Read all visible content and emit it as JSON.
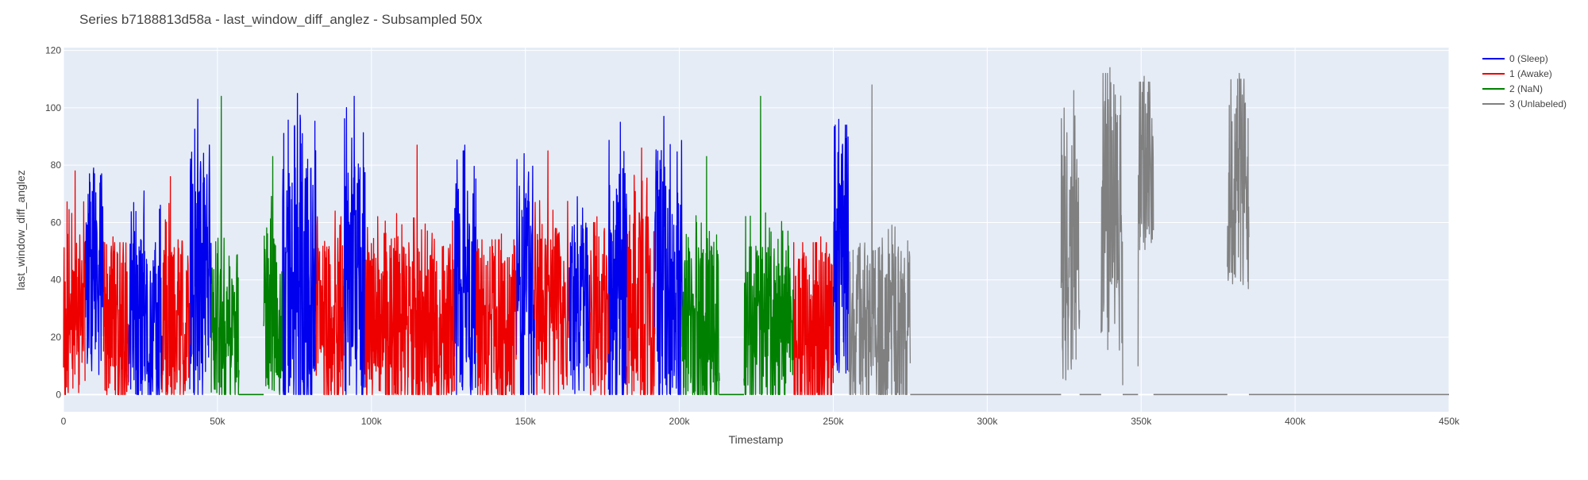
{
  "chart_data": {
    "type": "line",
    "title": "Series b7188813d58a - last_window_diff_anglez - Subsampled 50x",
    "xlabel": "Timestamp",
    "ylabel": "last_window_diff_anglez",
    "xlim": [
      0,
      450000
    ],
    "ylim": [
      -6,
      121
    ],
    "x_ticks": [
      0,
      50000,
      100000,
      150000,
      200000,
      250000,
      300000,
      350000,
      400000,
      450000
    ],
    "x_tick_labels": [
      "0",
      "50k",
      "100k",
      "150k",
      "200k",
      "250k",
      "300k",
      "350k",
      "400k",
      "450k"
    ],
    "y_ticks": [
      0,
      20,
      40,
      60,
      80,
      100,
      120
    ],
    "y_tick_labels": [
      "0",
      "20",
      "40",
      "60",
      "80",
      "100",
      "120"
    ],
    "grid": true,
    "legend": "top-right",
    "plot_bg": "#e5ecf6",
    "series": [
      {
        "name": "0 (Sleep)",
        "color": "#0000ee",
        "segments": [
          {
            "start": 7000,
            "end": 13000,
            "level": 40,
            "spread": 35,
            "max": 79
          },
          {
            "start": 21000,
            "end": 32000,
            "level": 25,
            "spread": 30,
            "max": 71
          },
          {
            "start": 41000,
            "end": 48000,
            "level": 38,
            "spread": 45,
            "max": 103
          },
          {
            "start": 71000,
            "end": 82000,
            "level": 35,
            "spread": 45,
            "max": 105
          },
          {
            "start": 91000,
            "end": 98000,
            "level": 38,
            "spread": 45,
            "max": 104
          },
          {
            "start": 127000,
            "end": 134000,
            "level": 35,
            "spread": 40,
            "max": 87
          },
          {
            "start": 147000,
            "end": 153000,
            "level": 35,
            "spread": 40,
            "max": 84
          },
          {
            "start": 164000,
            "end": 171000,
            "level": 30,
            "spread": 30,
            "max": 69
          },
          {
            "start": 177000,
            "end": 183000,
            "level": 35,
            "spread": 40,
            "max": 95
          },
          {
            "start": 192000,
            "end": 201000,
            "level": 35,
            "spread": 40,
            "max": 97
          },
          {
            "start": 250000,
            "end": 255000,
            "level": 45,
            "spread": 40,
            "max": 96
          }
        ]
      },
      {
        "name": "1 (Awake)",
        "color": "#ee0000",
        "segments": [
          {
            "start": 0,
            "end": 7000,
            "level": 28,
            "spread": 30,
            "max": 78
          },
          {
            "start": 13000,
            "end": 21000,
            "level": 25,
            "spread": 30,
            "max": 55
          },
          {
            "start": 32000,
            "end": 41000,
            "level": 25,
            "spread": 30,
            "max": 76
          },
          {
            "start": 82000,
            "end": 91000,
            "level": 22,
            "spread": 30,
            "max": 64
          },
          {
            "start": 98000,
            "end": 127000,
            "level": 22,
            "spread": 30,
            "max": 87
          },
          {
            "start": 134000,
            "end": 147000,
            "level": 22,
            "spread": 30,
            "max": 56
          },
          {
            "start": 153000,
            "end": 164000,
            "level": 28,
            "spread": 30,
            "max": 85
          },
          {
            "start": 171000,
            "end": 177000,
            "level": 28,
            "spread": 30,
            "max": 62
          },
          {
            "start": 183000,
            "end": 192000,
            "level": 30,
            "spread": 35,
            "max": 86
          },
          {
            "start": 237000,
            "end": 250000,
            "level": 20,
            "spread": 30,
            "max": 55
          }
        ]
      },
      {
        "name": "2 (NaN)",
        "color": "#008000",
        "segments": [
          {
            "start": 48000,
            "end": 57000,
            "level": 20,
            "spread": 25,
            "max": 104
          },
          {
            "start": 65000,
            "end": 71000,
            "level": 28,
            "spread": 30,
            "max": 83
          },
          {
            "start": 201000,
            "end": 213000,
            "level": 22,
            "spread": 30,
            "max": 83
          },
          {
            "start": 221000,
            "end": 237000,
            "level": 22,
            "spread": 30,
            "max": 104
          }
        ]
      },
      {
        "name": "3 (Unlabeled)",
        "color": "#808080",
        "segments": [
          {
            "start": 255000,
            "end": 275000,
            "level": 22,
            "spread": 30,
            "max": 108
          },
          {
            "start": 324000,
            "end": 330000,
            "level": 45,
            "spread": 40,
            "max": 106
          },
          {
            "start": 337000,
            "end": 344000,
            "level": 60,
            "spread": 45,
            "max": 114
          },
          {
            "start": 349000,
            "end": 354000,
            "level": 80,
            "spread": 30,
            "max": 111
          },
          {
            "start": 378000,
            "end": 385000,
            "level": 70,
            "spread": 35,
            "max": 112
          }
        ]
      }
    ]
  }
}
